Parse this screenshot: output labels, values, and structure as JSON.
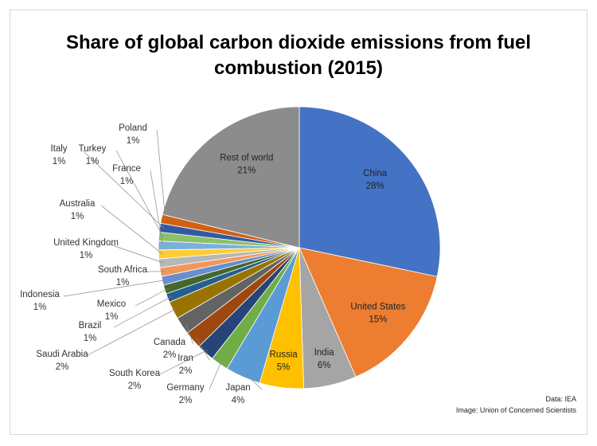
{
  "chart_data": {
    "type": "pie",
    "title": "Share of global carbon dioxide emissions from fuel\ncombustion (2015)",
    "slices": [
      {
        "label": "China",
        "pct_label": "28%",
        "value": 28,
        "color": "#4472c4"
      },
      {
        "label": "United States",
        "pct_label": "15%",
        "value": 15,
        "color": "#ed7d31"
      },
      {
        "label": "India",
        "pct_label": "6%",
        "value": 6,
        "color": "#a5a5a5"
      },
      {
        "label": "Russia",
        "pct_label": "5%",
        "value": 5,
        "color": "#ffc000"
      },
      {
        "label": "Japan",
        "pct_label": "4%",
        "value": 4,
        "color": "#5b9bd5"
      },
      {
        "label": "Germany",
        "pct_label": "2%",
        "value": 2,
        "color": "#70ad47"
      },
      {
        "label": "South Korea",
        "pct_label": "2%",
        "value": 2,
        "color": "#264478"
      },
      {
        "label": "Iran",
        "pct_label": "2%",
        "value": 2,
        "color": "#9e480e"
      },
      {
        "label": "Canada",
        "pct_label": "2%",
        "value": 2,
        "color": "#636363"
      },
      {
        "label": "Saudi Arabia",
        "pct_label": "2%",
        "value": 2,
        "color": "#997300"
      },
      {
        "label": "Brazil",
        "pct_label": "1%",
        "value": 1,
        "color": "#255e91"
      },
      {
        "label": "Mexico",
        "pct_label": "1%",
        "value": 1,
        "color": "#43682b"
      },
      {
        "label": "Indonesia",
        "pct_label": "1%",
        "value": 1,
        "color": "#698ed0"
      },
      {
        "label": "South Africa",
        "pct_label": "1%",
        "value": 1,
        "color": "#f1975a"
      },
      {
        "label": "United Kingdom",
        "pct_label": "1%",
        "value": 1,
        "color": "#b7b7b7"
      },
      {
        "label": "Australia",
        "pct_label": "1%",
        "value": 1,
        "color": "#ffcd33"
      },
      {
        "label": "France",
        "pct_label": "1%",
        "value": 1,
        "color": "#7cafdd"
      },
      {
        "label": "Turkey",
        "pct_label": "1%",
        "value": 1,
        "color": "#8cc168"
      },
      {
        "label": "Italy",
        "pct_label": "1%",
        "value": 1,
        "color": "#335aa1"
      },
      {
        "label": "Poland",
        "pct_label": "1%",
        "value": 1,
        "color": "#d26012"
      },
      {
        "label": "Rest of world",
        "pct_label": "21%",
        "value": 21,
        "color": "#8c8c8c"
      }
    ]
  },
  "footer": {
    "source": "Data: IEA",
    "credit": "Image: Union of Concerned Scientists"
  }
}
